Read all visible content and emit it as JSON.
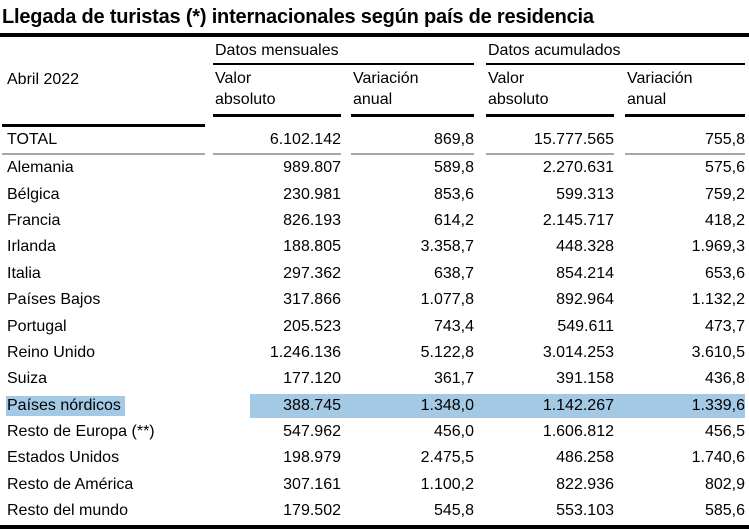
{
  "title": "Llegada de turistas (*) internacionales según país de residencia",
  "table": {
    "period_label": "Abril 2022",
    "groups": [
      {
        "label": "Datos mensuales"
      },
      {
        "label": "Datos acumulados"
      }
    ],
    "columns": {
      "valor_line1": "Valor",
      "valor_line2": "absoluto",
      "variacion_line1": "Variación",
      "variacion_line2": "anual"
    },
    "highlight_color": "#A4C9E4",
    "rows": [
      {
        "label": "TOTAL",
        "monthly_abs": "6.102.142",
        "monthly_var": "869,8",
        "accum_abs": "15.777.565",
        "accum_var": "755,8",
        "total": true
      },
      {
        "label": "Alemania",
        "monthly_abs": "989.807",
        "monthly_var": "589,8",
        "accum_abs": "2.270.631",
        "accum_var": "575,6"
      },
      {
        "label": "Bélgica",
        "monthly_abs": "230.981",
        "monthly_var": "853,6",
        "accum_abs": "599.313",
        "accum_var": "759,2"
      },
      {
        "label": "Francia",
        "monthly_abs": "826.193",
        "monthly_var": "614,2",
        "accum_abs": "2.145.717",
        "accum_var": "418,2"
      },
      {
        "label": "Irlanda",
        "monthly_abs": "188.805",
        "monthly_var": "3.358,7",
        "accum_abs": "448.328",
        "accum_var": "1.969,3"
      },
      {
        "label": "Italia",
        "monthly_abs": "297.362",
        "monthly_var": "638,7",
        "accum_abs": "854.214",
        "accum_var": "653,6"
      },
      {
        "label": "Países Bajos",
        "monthly_abs": "317.866",
        "monthly_var": "1.077,8",
        "accum_abs": "892.964",
        "accum_var": "1.132,2"
      },
      {
        "label": "Portugal",
        "monthly_abs": "205.523",
        "monthly_var": "743,4",
        "accum_abs": "549.611",
        "accum_var": "473,7"
      },
      {
        "label": "Reino Unido",
        "monthly_abs": "1.246.136",
        "monthly_var": "5.122,8",
        "accum_abs": "3.014.253",
        "accum_var": "3.610,5"
      },
      {
        "label": "Suiza",
        "monthly_abs": "177.120",
        "monthly_var": "361,7",
        "accum_abs": "391.158",
        "accum_var": "436,8"
      },
      {
        "label": "Países nórdicos",
        "monthly_abs": "388.745",
        "monthly_var": "1.348,0",
        "accum_abs": "1.142.267",
        "accum_var": "1.339,6",
        "highlighted": true
      },
      {
        "label": "Resto de Europa (**)",
        "monthly_abs": "547.962",
        "monthly_var": "456,0",
        "accum_abs": "1.606.812",
        "accum_var": "456,5"
      },
      {
        "label": "Estados Unidos",
        "monthly_abs": "198.979",
        "monthly_var": "2.475,5",
        "accum_abs": "486.258",
        "accum_var": "1.740,6"
      },
      {
        "label": "Resto de América",
        "monthly_abs": "307.161",
        "monthly_var": "1.100,2",
        "accum_abs": "822.936",
        "accum_var": "802,9"
      },
      {
        "label": "Resto del mundo",
        "monthly_abs": "179.502",
        "monthly_var": "545,8",
        "accum_abs": "553.103",
        "accum_var": "585,6"
      }
    ]
  }
}
